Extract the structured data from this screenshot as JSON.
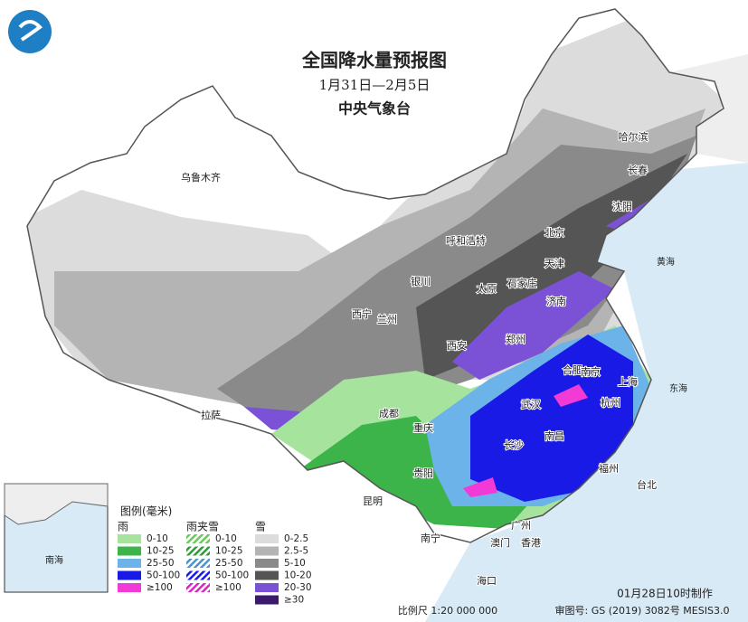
{
  "header": {
    "title": "全国降水量预报图",
    "subtitle": "1月31日—2月5日",
    "agency": "中央气象台"
  },
  "cities": [
    "乌鲁木齐",
    "呼和浩特",
    "北京",
    "哈尔滨",
    "长春",
    "沈阳",
    "天津",
    "石家庄",
    "太原",
    "银川",
    "西宁",
    "兰州",
    "济南",
    "郑州",
    "西安",
    "合肥",
    "南京",
    "上海",
    "杭州",
    "武汉",
    "成都",
    "重庆",
    "拉萨",
    "长沙",
    "南昌",
    "贵阳",
    "福州",
    "台北",
    "昆明",
    "南宁",
    "广州",
    "澳门",
    "香港",
    "海口"
  ],
  "seas": [
    "黄海",
    "东海",
    "南海"
  ],
  "legend": {
    "title": "图例(毫米)",
    "groups": [
      {
        "name": "雨",
        "pattern": "solid",
        "items": [
          {
            "label": "0-10",
            "color": "#a6e39d"
          },
          {
            "label": "10-25",
            "color": "#3cb44a"
          },
          {
            "label": "25-50",
            "color": "#6cb3ea"
          },
          {
            "label": "50-100",
            "color": "#1a1ae6"
          },
          {
            "label": "≥100",
            "color": "#f23ad6"
          }
        ]
      },
      {
        "name": "雨夹雪",
        "pattern": "hatch",
        "items": [
          {
            "label": "0-10",
            "color": "#6cc95e"
          },
          {
            "label": "10-25",
            "color": "#2f9a3c"
          },
          {
            "label": "25-50",
            "color": "#4f92c9"
          },
          {
            "label": "50-100",
            "color": "#1a1ae6"
          },
          {
            "label": "≥100",
            "color": "#d925c4"
          }
        ]
      },
      {
        "name": "雪",
        "pattern": "solid",
        "items": [
          {
            "label": "0-2.5",
            "color": "#dcdcdc"
          },
          {
            "label": "2.5-5",
            "color": "#b4b4b4"
          },
          {
            "label": "5-10",
            "color": "#8a8a8a"
          },
          {
            "label": "10-20",
            "color": "#555555"
          },
          {
            "label": "20-30",
            "color": "#7b52d6"
          },
          {
            "label": "≥30",
            "color": "#3b1a6e"
          }
        ]
      }
    ]
  },
  "footer": {
    "made": "01月28日10时制作",
    "scale": "比例尺 1:20 000 000",
    "review": "审图号: GS (2019) 3082号 MESIS3.0"
  }
}
